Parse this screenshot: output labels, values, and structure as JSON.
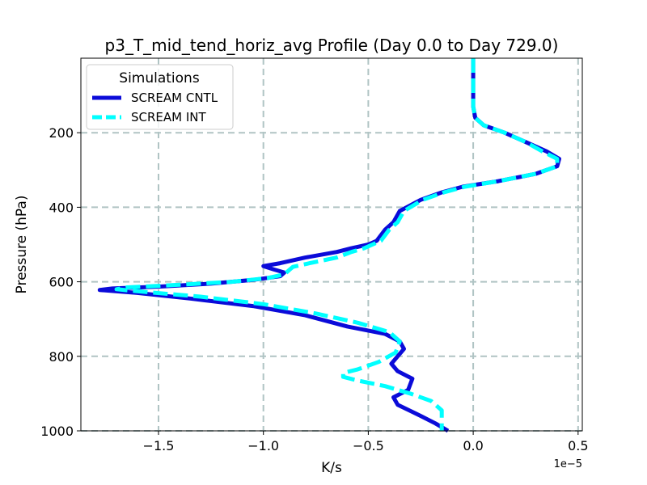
{
  "chart_data": {
    "type": "line",
    "title": "p3_T_mid_tend_horiz_avg Profile (Day 0.0 to Day 729.0)",
    "xlabel": "K/s",
    "ylabel": "Pressure (hPa)",
    "x_offset_label": "1e−5",
    "x_scale_factor": 1e-05,
    "xlim": [
      -1.87,
      0.52
    ],
    "ylim": [
      1000,
      0
    ],
    "y_inverted": true,
    "xticks": [
      -1.5,
      -1.0,
      -0.5,
      0.0,
      0.5
    ],
    "xtick_labels": [
      "−1.5",
      "−1.0",
      "−0.5",
      "0.0",
      "0.5"
    ],
    "yticks": [
      200,
      400,
      600,
      800,
      1000
    ],
    "ytick_labels": [
      "200",
      "400",
      "600",
      "800",
      "1000"
    ],
    "grid": true,
    "legend": {
      "title": "Simulations",
      "position": "top-left"
    },
    "series": [
      {
        "name": "SCREAM CNTL",
        "color": "#0b0bd9",
        "style": "solid",
        "x": [
          0.0,
          0.0,
          0.0,
          0.0,
          0.01,
          0.05,
          0.15,
          0.25,
          0.35,
          0.41,
          0.4,
          0.3,
          0.12,
          -0.05,
          -0.15,
          -0.25,
          -0.35,
          -0.38,
          -0.42,
          -0.46,
          -0.5,
          -0.54,
          -0.58,
          -0.65,
          -0.8,
          -0.92,
          -1.0,
          -0.95,
          -0.9,
          -0.92,
          -1.05,
          -1.25,
          -1.5,
          -1.72,
          -1.78,
          -1.6,
          -1.35,
          -1.05,
          -0.8,
          -0.6,
          -0.42,
          -0.35,
          -0.33,
          -0.36,
          -0.39,
          -0.36,
          -0.29,
          -0.31,
          -0.38,
          -0.36,
          -0.25,
          -0.18,
          -0.12
        ],
        "y": [
          0,
          50,
          100,
          130,
          160,
          180,
          200,
          225,
          250,
          270,
          290,
          310,
          330,
          345,
          360,
          380,
          410,
          440,
          460,
          490,
          500,
          505,
          510,
          520,
          535,
          550,
          558,
          567,
          575,
          585,
          595,
          605,
          613,
          618,
          622,
          630,
          645,
          665,
          690,
          720,
          740,
          760,
          780,
          800,
          820,
          840,
          860,
          890,
          910,
          930,
          960,
          980,
          1000
        ]
      },
      {
        "name": "SCREAM INT",
        "color": "#00ffff",
        "style": "dashed",
        "x": [
          0.0,
          0.0,
          0.0,
          0.0,
          0.01,
          0.05,
          0.15,
          0.25,
          0.33,
          0.4,
          0.4,
          0.3,
          0.12,
          -0.04,
          -0.14,
          -0.24,
          -0.33,
          -0.36,
          -0.4,
          -0.44,
          -0.48,
          -0.52,
          -0.58,
          -0.65,
          -0.78,
          -0.86,
          -0.88,
          -0.9,
          -0.98,
          -1.15,
          -1.4,
          -1.65,
          -1.7,
          -1.55,
          -1.3,
          -1.0,
          -0.75,
          -0.55,
          -0.4,
          -0.35,
          -0.37,
          -0.45,
          -0.55,
          -0.62,
          -0.62,
          -0.55,
          -0.42,
          -0.3,
          -0.2,
          -0.15,
          -0.15
        ],
        "y": [
          0,
          50,
          100,
          130,
          160,
          180,
          200,
          225,
          250,
          270,
          290,
          310,
          330,
          345,
          360,
          380,
          410,
          440,
          460,
          490,
          500,
          510,
          520,
          535,
          550,
          560,
          570,
          580,
          590,
          600,
          608,
          615,
          620,
          628,
          640,
          660,
          685,
          710,
          735,
          760,
          790,
          815,
          835,
          845,
          855,
          865,
          880,
          900,
          920,
          945,
          1000
        ]
      }
    ]
  }
}
